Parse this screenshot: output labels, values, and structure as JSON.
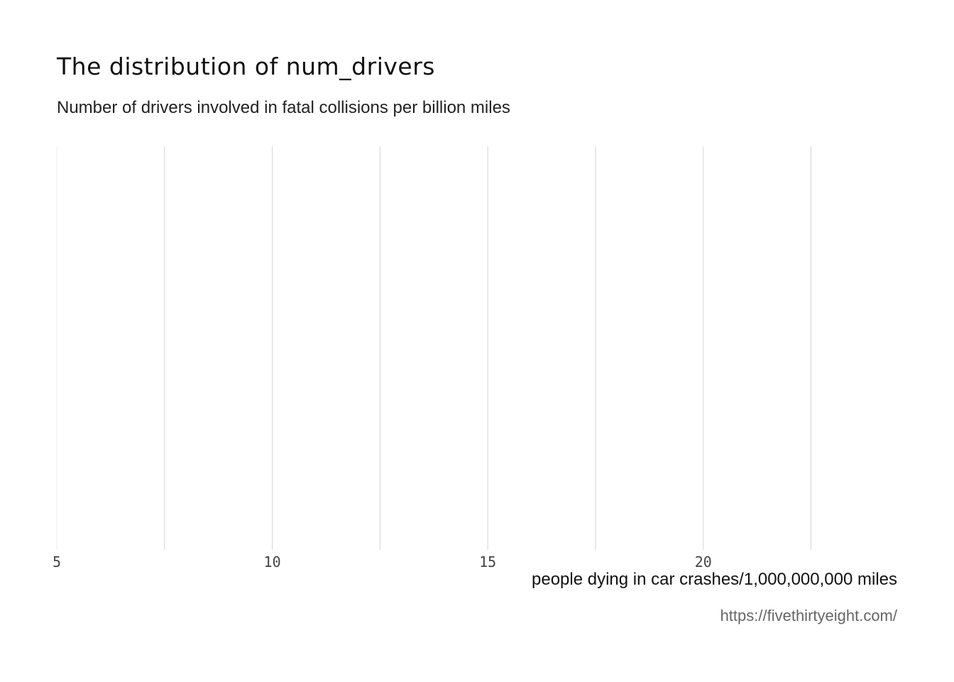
{
  "chart_data": {
    "type": "histogram",
    "title": "The distribution of num_drivers",
    "subtitle": "Number of drivers involved in fatal collisions per billion miles",
    "xlabel": "people dying in car crashes/1,000,000,000 miles",
    "ylabel": "",
    "caption": "https://fivethirtyeight.com/",
    "xlim": [
      5,
      24.5
    ],
    "x_major_ticks": [
      5,
      10,
      15,
      20
    ],
    "x_minor_ticks": [
      7.5,
      12.5,
      17.5,
      22.5
    ],
    "x_tick_labels": [
      "5",
      "10",
      "15",
      "20"
    ],
    "grid": "vertical",
    "values": [],
    "colors": {
      "grid_major": "#d4d4d4",
      "grid_minor": "#ececec",
      "tick_label": "#444444",
      "caption": "#666666"
    }
  }
}
